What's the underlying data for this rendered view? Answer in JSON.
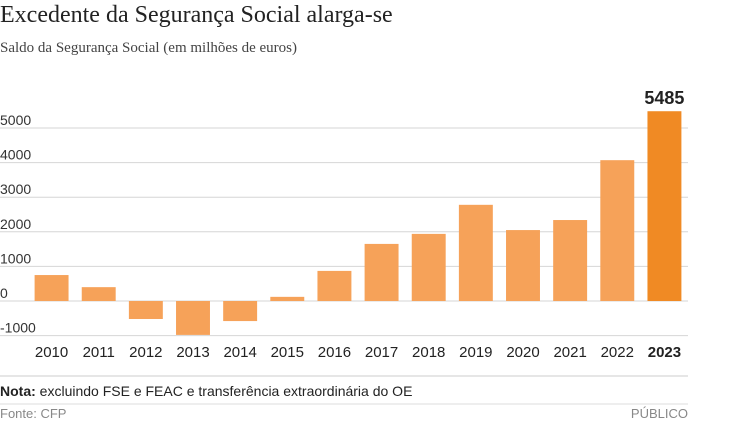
{
  "chart_data": {
    "type": "bar",
    "title": "Excedente da Segurança Social alarga-se",
    "subtitle": "Saldo da Segurança Social (em milhões de euros)",
    "categories": [
      "2010",
      "2011",
      "2012",
      "2013",
      "2014",
      "2015",
      "2016",
      "2017",
      "2018",
      "2019",
      "2020",
      "2021",
      "2022",
      "2023"
    ],
    "values": [
      750,
      400,
      -520,
      -980,
      -580,
      120,
      870,
      1650,
      1940,
      2780,
      2050,
      2340,
      4070,
      5485
    ],
    "color": "#f6a259",
    "colors": [
      "#f6a259",
      "#f6a259",
      "#f6a259",
      "#f6a259",
      "#f6a259",
      "#f6a259",
      "#f6a259",
      "#f6a259",
      "#f6a259",
      "#f6a259",
      "#f6a259",
      "#f6a259",
      "#f6a259",
      "#f08a24"
    ],
    "ylim": [
      -1000,
      6000
    ],
    "yticks": [
      -1000,
      0,
      1000,
      2000,
      3000,
      4000,
      5000
    ],
    "grid": true,
    "note": {
      "label": "Nota:",
      "text": "excluindo FSE e FEAC e transferência extraordinária do OE"
    },
    "source": "Fonte: CFP",
    "publisher": "PÚBLICO"
  }
}
